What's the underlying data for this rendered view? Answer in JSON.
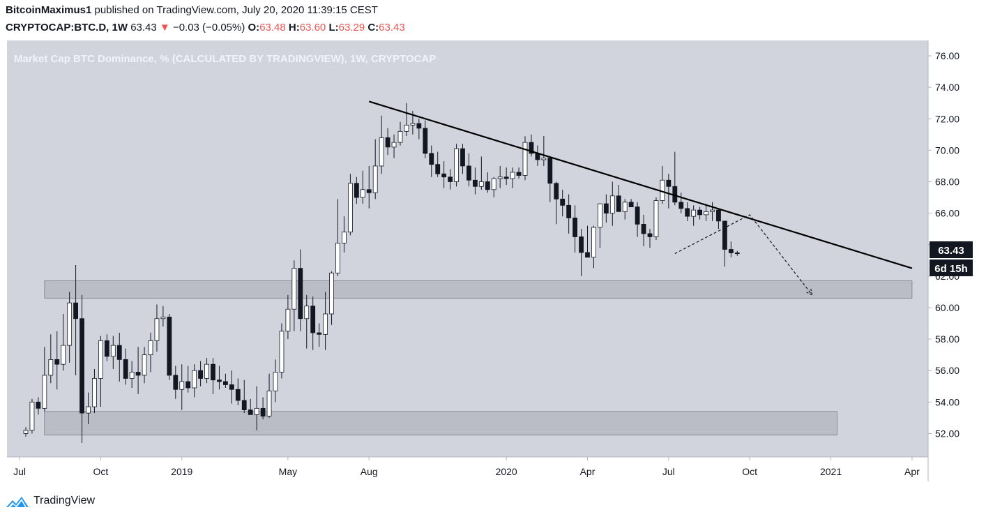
{
  "header": {
    "author": "BitcoinMaximus1",
    "published_text": " published on TradingView.com, July 20, 2020 11:39:15 CEST",
    "symbol": "CRYPTOCAP:BTC.D, 1W",
    "last": "63.43",
    "change_arrow": "▼",
    "change": "−0.03 (−0.05%)",
    "o_label": "O:",
    "o_value": "63.48",
    "h_label": "H:",
    "h_value": "63.60",
    "l_label": "L:",
    "l_value": "63.29",
    "c_label": "C:",
    "c_value": "63.43"
  },
  "chart_data": {
    "type": "candlestick",
    "title": "Market Cap BTC Dominance, % (CALCULATED BY TRADINGVIEW), 1W, CRYPTOCAP",
    "ylim": [
      50.8,
      76.6
    ],
    "y_ticks": [
      "52.00",
      "54.00",
      "56.00",
      "58.00",
      "60.00",
      "62.00",
      "64.00",
      "66.00",
      "68.00",
      "70.00",
      "72.00",
      "74.00",
      "76.00"
    ],
    "x_ticks": [
      {
        "label": "Jul",
        "week": -1
      },
      {
        "label": "Oct",
        "week": 12
      },
      {
        "label": "2019",
        "week": 25
      },
      {
        "label": "May",
        "week": 42
      },
      {
        "label": "Aug",
        "week": 55
      },
      {
        "label": "2020",
        "week": 77
      },
      {
        "label": "Apr",
        "week": 90
      },
      {
        "label": "Jul",
        "week": 103
      },
      {
        "label": "Oct",
        "week": 116
      },
      {
        "label": "2021",
        "week": 129
      },
      {
        "label": "Apr",
        "week": 142
      }
    ],
    "last_price_label": "63.43",
    "countdown_label": "6d 15h",
    "candles": [
      [
        52.0,
        52.4,
        51.8,
        52.2
      ],
      [
        52.2,
        54.2,
        52.0,
        54.0
      ],
      [
        54.0,
        54.3,
        53.2,
        53.6
      ],
      [
        53.6,
        57.5,
        53.4,
        55.7
      ],
      [
        55.7,
        58.3,
        55.2,
        56.7
      ],
      [
        56.7,
        58.5,
        54.8,
        56.4
      ],
      [
        56.4,
        59.6,
        56.0,
        57.6
      ],
      [
        57.6,
        61.0,
        56.5,
        60.3
      ],
      [
        60.3,
        62.7,
        55.7,
        59.3
      ],
      [
        59.3,
        60.8,
        51.4,
        53.3
      ],
      [
        53.3,
        54.6,
        52.6,
        53.7
      ],
      [
        53.7,
        56.1,
        53.3,
        55.5
      ],
      [
        55.5,
        58.2,
        53.7,
        57.9
      ],
      [
        57.9,
        58.3,
        56.6,
        56.9
      ],
      [
        56.9,
        58.2,
        56.1,
        57.6
      ],
      [
        57.6,
        58.4,
        55.3,
        56.7
      ],
      [
        56.7,
        57.4,
        55.1,
        55.5
      ],
      [
        55.5,
        56.6,
        54.9,
        55.9
      ],
      [
        55.9,
        57.5,
        54.5,
        55.7
      ],
      [
        55.7,
        57.5,
        55.2,
        57.0
      ],
      [
        57.0,
        58.4,
        55.9,
        57.9
      ],
      [
        57.9,
        60.2,
        57.2,
        59.3
      ],
      [
        59.3,
        60.1,
        58.8,
        59.4
      ],
      [
        59.4,
        59.6,
        55.4,
        55.7
      ],
      [
        55.7,
        56.3,
        54.2,
        54.8
      ],
      [
        54.8,
        56.4,
        53.5,
        55.3
      ],
      [
        55.3,
        56.3,
        54.6,
        54.9
      ],
      [
        54.9,
        56.4,
        54.3,
        56.0
      ],
      [
        56.0,
        56.6,
        55.0,
        55.5
      ],
      [
        55.5,
        56.8,
        55.2,
        56.4
      ],
      [
        56.4,
        56.8,
        54.5,
        55.4
      ],
      [
        55.4,
        56.3,
        54.8,
        55.3
      ],
      [
        55.3,
        55.8,
        54.9,
        55.1
      ],
      [
        55.1,
        56.0,
        53.9,
        54.8
      ],
      [
        54.8,
        55.5,
        53.8,
        54.1
      ],
      [
        54.1,
        55.4,
        53.3,
        53.5
      ],
      [
        53.5,
        54.2,
        53.2,
        53.2
      ],
      [
        53.2,
        55.0,
        52.2,
        53.6
      ],
      [
        53.6,
        54.3,
        52.9,
        53.1
      ],
      [
        53.1,
        55.8,
        53.0,
        54.7
      ],
      [
        54.7,
        56.7,
        54.0,
        55.9
      ],
      [
        55.9,
        59.0,
        55.5,
        58.5
      ],
      [
        58.5,
        60.8,
        58.0,
        59.9
      ],
      [
        59.9,
        63.0,
        58.5,
        62.5
      ],
      [
        62.5,
        63.7,
        58.5,
        59.3
      ],
      [
        59.3,
        60.8,
        57.4,
        60.1
      ],
      [
        60.1,
        60.7,
        57.3,
        58.4
      ],
      [
        58.4,
        59.0,
        57.5,
        58.3
      ],
      [
        58.3,
        61.0,
        57.3,
        59.6
      ],
      [
        59.6,
        62.3,
        58.9,
        62.2
      ],
      [
        62.2,
        66.9,
        62.0,
        64.1
      ],
      [
        64.1,
        65.8,
        63.5,
        64.8
      ],
      [
        64.8,
        68.5,
        64.6,
        67.9
      ],
      [
        67.9,
        68.3,
        66.6,
        67.0
      ],
      [
        67.0,
        68.7,
        66.6,
        67.5
      ],
      [
        67.5,
        69.0,
        66.3,
        67.3
      ],
      [
        67.3,
        70.7,
        66.9,
        69.0
      ],
      [
        69.0,
        72.2,
        68.5,
        70.8
      ],
      [
        70.8,
        71.4,
        69.7,
        70.2
      ],
      [
        70.2,
        71.0,
        69.5,
        70.5
      ],
      [
        70.5,
        71.8,
        70.3,
        71.2
      ],
      [
        71.2,
        73.0,
        70.9,
        71.6
      ],
      [
        71.6,
        72.5,
        71.0,
        71.7
      ],
      [
        71.7,
        72.0,
        70.7,
        71.4
      ],
      [
        71.4,
        71.9,
        69.5,
        69.8
      ],
      [
        69.8,
        70.3,
        68.3,
        69.1
      ],
      [
        69.1,
        69.9,
        68.3,
        68.5
      ],
      [
        68.5,
        69.3,
        67.6,
        68.3
      ],
      [
        68.3,
        68.8,
        67.5,
        68.0
      ],
      [
        68.0,
        70.4,
        67.7,
        70.1
      ],
      [
        70.1,
        70.4,
        68.5,
        69.0
      ],
      [
        69.0,
        69.8,
        67.7,
        68.1
      ],
      [
        68.1,
        68.9,
        67.2,
        67.7
      ],
      [
        67.7,
        69.6,
        67.5,
        68.0
      ],
      [
        68.0,
        68.6,
        67.3,
        67.5
      ],
      [
        67.5,
        68.3,
        67.0,
        68.2
      ],
      [
        68.2,
        69.0,
        67.6,
        68.3
      ],
      [
        68.3,
        68.9,
        67.8,
        68.2
      ],
      [
        68.2,
        68.9,
        67.6,
        68.6
      ],
      [
        68.6,
        68.9,
        68.2,
        68.4
      ],
      [
        68.4,
        70.9,
        68.1,
        70.5
      ],
      [
        70.5,
        71.0,
        69.6,
        69.8
      ],
      [
        69.8,
        70.3,
        69.0,
        69.4
      ],
      [
        69.4,
        70.9,
        69.0,
        69.5
      ],
      [
        69.5,
        69.5,
        66.7,
        67.9
      ],
      [
        67.9,
        68.0,
        65.3,
        66.9
      ],
      [
        66.9,
        67.5,
        65.8,
        66.5
      ],
      [
        66.5,
        67.2,
        64.7,
        65.7
      ],
      [
        65.7,
        66.5,
        63.5,
        64.5
      ],
      [
        64.5,
        65.0,
        62.0,
        63.5
      ],
      [
        63.5,
        65.2,
        63.2,
        63.2
      ],
      [
        63.2,
        65.2,
        62.5,
        65.1
      ],
      [
        65.1,
        66.6,
        63.8,
        66.6
      ],
      [
        66.6,
        67.2,
        65.4,
        66.0
      ],
      [
        66.0,
        68.0,
        65.2,
        67.1
      ],
      [
        67.1,
        67.8,
        66.2,
        66.1
      ],
      [
        66.1,
        66.9,
        65.6,
        66.7
      ],
      [
        66.7,
        66.9,
        66.5,
        66.4
      ],
      [
        66.4,
        66.7,
        64.5,
        65.3
      ],
      [
        65.3,
        65.9,
        63.9,
        64.7
      ],
      [
        64.7,
        65.0,
        63.8,
        64.5
      ],
      [
        64.5,
        67.0,
        64.3,
        66.8
      ],
      [
        66.8,
        69.0,
        66.6,
        68.1
      ],
      [
        68.1,
        68.5,
        66.3,
        67.7
      ],
      [
        67.7,
        69.9,
        66.5,
        66.7
      ],
      [
        66.7,
        67.3,
        66.0,
        66.3
      ],
      [
        66.3,
        66.7,
        65.5,
        65.8
      ],
      [
        65.8,
        66.5,
        65.2,
        66.2
      ],
      [
        66.2,
        66.4,
        65.6,
        65.9
      ],
      [
        65.9,
        66.6,
        65.5,
        66.1
      ],
      [
        66.1,
        66.7,
        65.5,
        66.2
      ],
      [
        66.2,
        66.3,
        65.0,
        65.5
      ],
      [
        65.5,
        65.5,
        62.6,
        63.7
      ],
      [
        63.7,
        64.2,
        63.2,
        63.48
      ],
      [
        63.48,
        63.6,
        63.29,
        63.43
      ]
    ],
    "trendline": {
      "start": {
        "week": 55,
        "value": 73.1
      },
      "end": {
        "week": 142,
        "value": 62.5
      }
    },
    "support_zones": [
      {
        "from_week": 3,
        "to_week": 142,
        "low": 60.6,
        "high": 61.7
      },
      {
        "from_week": 3,
        "to_week": 130,
        "low": 51.9,
        "high": 53.4
      }
    ],
    "projection_path": [
      {
        "week": 104,
        "value": 63.43
      },
      {
        "week": 116,
        "value": 65.9
      },
      {
        "week": 126,
        "value": 60.8
      }
    ]
  },
  "footer": {
    "brand": "TradingView"
  },
  "colors": {
    "background": "#d1d4dc",
    "up_body": "#ffffff",
    "down_body": "#131722",
    "wick": "#131722",
    "zone": "#b2b5be"
  }
}
